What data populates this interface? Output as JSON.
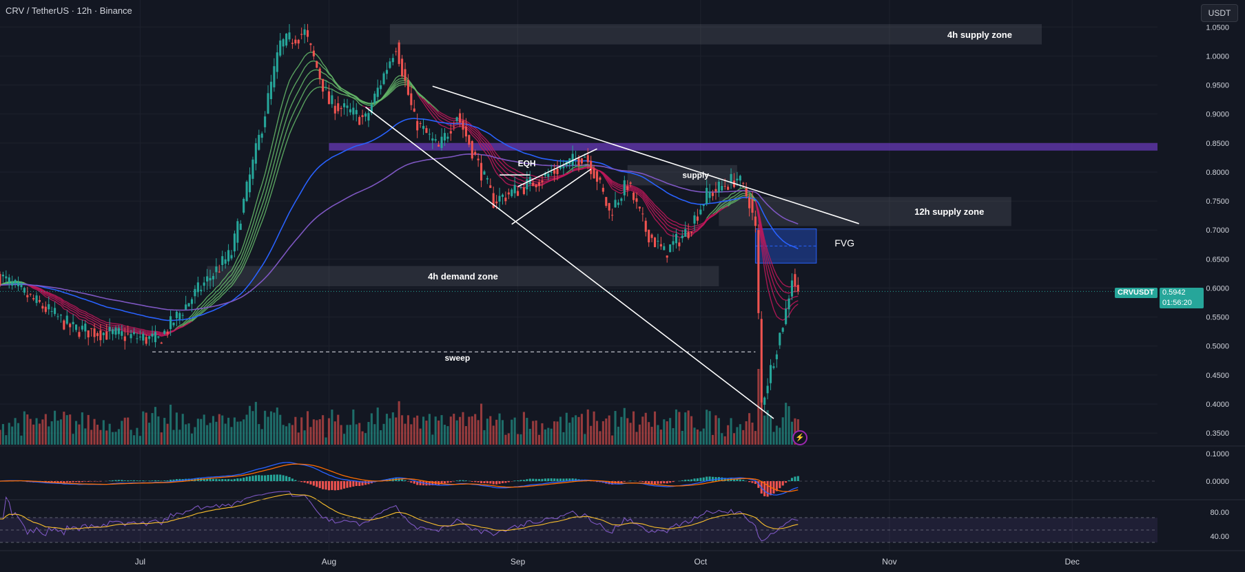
{
  "header": {
    "title": "CRV / TetherUS · 12h · Binance",
    "currency_button": "USDT"
  },
  "price_tag": {
    "symbol": "CRVUSDT",
    "price": "0.5942",
    "countdown": "01:56:20"
  },
  "colors": {
    "background": "#131722",
    "up": "#26a69a",
    "down": "#ef5350",
    "zone": "#2a2e39",
    "purple_band": "#4a2c8f",
    "fvg": "#1e3a8a"
  },
  "chart_data": {
    "type": "candlestick",
    "y_axis": {
      "min": 0.33,
      "max": 1.08,
      "ticks": [
        1.05,
        1.0,
        0.95,
        0.9,
        0.85,
        0.8,
        0.75,
        0.7,
        0.65,
        0.6,
        0.55,
        0.5,
        0.45,
        0.4,
        0.35
      ],
      "tick_labels": [
        "1.0500",
        "1.0000",
        "0.9500",
        "0.9000",
        "0.8500",
        "0.8000",
        "0.7500",
        "0.7000",
        "0.6500",
        "0.6000",
        "0.5500",
        "0.5000",
        "0.4500",
        "0.4000",
        "0.3500"
      ]
    },
    "x_axis": {
      "start": "2023-06-08",
      "end": "2023-12-15",
      "ticks": [
        {
          "date": "2023-07-01",
          "label": "Jul"
        },
        {
          "date": "2023-08-01",
          "label": "Aug"
        },
        {
          "date": "2023-09-01",
          "label": "Sep"
        },
        {
          "date": "2023-10-01",
          "label": "Oct"
        },
        {
          "date": "2023-11-01",
          "label": "Nov"
        },
        {
          "date": "2023-12-01",
          "label": "Dec"
        }
      ]
    },
    "price_keypoints": [
      {
        "date": "2023-06-08",
        "price": 0.62
      },
      {
        "date": "2023-06-20",
        "price": 0.53
      },
      {
        "date": "2023-07-04",
        "price": 0.51
      },
      {
        "date": "2023-07-10",
        "price": 0.59
      },
      {
        "date": "2023-07-16",
        "price": 0.66
      },
      {
        "date": "2023-07-21",
        "price": 0.88
      },
      {
        "date": "2023-07-24",
        "price": 1.02
      },
      {
        "date": "2023-07-28",
        "price": 1.04
      },
      {
        "date": "2023-08-01",
        "price": 0.92
      },
      {
        "date": "2023-08-07",
        "price": 0.89
      },
      {
        "date": "2023-08-12",
        "price": 1.02
      },
      {
        "date": "2023-08-15",
        "price": 0.89
      },
      {
        "date": "2023-08-19",
        "price": 0.84
      },
      {
        "date": "2023-08-22",
        "price": 0.9
      },
      {
        "date": "2023-08-28",
        "price": 0.75
      },
      {
        "date": "2023-09-05",
        "price": 0.79
      },
      {
        "date": "2023-09-12",
        "price": 0.83
      },
      {
        "date": "2023-09-14",
        "price": 0.79
      },
      {
        "date": "2023-09-16",
        "price": 0.73
      },
      {
        "date": "2023-09-19",
        "price": 0.78
      },
      {
        "date": "2023-09-22",
        "price": 0.7
      },
      {
        "date": "2023-09-25",
        "price": 0.66
      },
      {
        "date": "2023-09-29",
        "price": 0.7
      },
      {
        "date": "2023-10-02",
        "price": 0.76
      },
      {
        "date": "2023-10-07",
        "price": 0.79
      },
      {
        "date": "2023-10-09",
        "price": 0.75
      },
      {
        "date": "2023-10-10",
        "price": 0.7
      },
      {
        "date": "2023-10-11",
        "price": 0.4
      },
      {
        "date": "2023-10-13",
        "price": 0.48
      },
      {
        "date": "2023-10-15",
        "price": 0.56
      },
      {
        "date": "2023-10-16",
        "price": 0.62
      },
      {
        "date": "2023-10-17",
        "price": 0.5942
      }
    ],
    "zones": [
      {
        "label": "4h supply zone",
        "start": "2023-08-11",
        "end": "2023-11-26",
        "top": 1.055,
        "bottom": 1.02
      },
      {
        "label": "12h supply zone",
        "start": "2023-10-04",
        "end": "2023-11-21",
        "top": 0.757,
        "bottom": 0.707
      },
      {
        "label": "4h demand zone",
        "start": "2023-07-12",
        "end": "2023-10-04",
        "top": 0.638,
        "bottom": 0.603
      },
      {
        "label": "supply",
        "start": "2023-09-19",
        "end": "2023-10-07",
        "top": 0.812,
        "bottom": 0.777
      },
      {
        "label": "",
        "start": "2023-08-01",
        "end": "2023-12-15",
        "top": 0.85,
        "bottom": 0.837
      },
      {
        "label": "FVG",
        "start": "2023-10-10",
        "end": "2023-10-20",
        "top": 0.702,
        "bottom": 0.643
      }
    ],
    "lines": [
      {
        "from": {
          "date": "2023-08-18",
          "price": 0.948
        },
        "to": {
          "date": "2023-10-27",
          "price": 0.711
        }
      },
      {
        "from": {
          "date": "2023-08-07",
          "price": 0.912
        },
        "to": {
          "date": "2023-10-13",
          "price": 0.375
        }
      },
      {
        "from": {
          "date": "2023-08-31",
          "price": 0.71
        },
        "to": {
          "date": "2023-09-13",
          "price": 0.805
        }
      },
      {
        "from": {
          "date": "2023-09-01",
          "price": 0.775
        },
        "to": {
          "date": "2023-09-14",
          "price": 0.84
        }
      },
      {
        "from": {
          "date": "2023-08-29",
          "price": 0.795
        },
        "to": {
          "date": "2023-09-03",
          "price": 0.795
        }
      }
    ],
    "sweep_line": {
      "start": "2023-07-03",
      "end": "2023-10-10",
      "price": 0.49
    },
    "annotations": [
      {
        "text": "EQH",
        "date": "2023-09-01",
        "price": 0.81
      },
      {
        "text": "sweep",
        "date": "2023-08-20",
        "price": 0.475
      },
      {
        "text": "supply",
        "date": "2023-09-28",
        "price": 0.79
      },
      {
        "text": "FVG",
        "date": "2023-10-23",
        "price": 0.672
      }
    ],
    "macd": {
      "tick_labels": [
        "0.1000",
        "0.0000"
      ]
    },
    "rsi": {
      "tick_labels": [
        "80.00",
        "40.00"
      ]
    }
  }
}
